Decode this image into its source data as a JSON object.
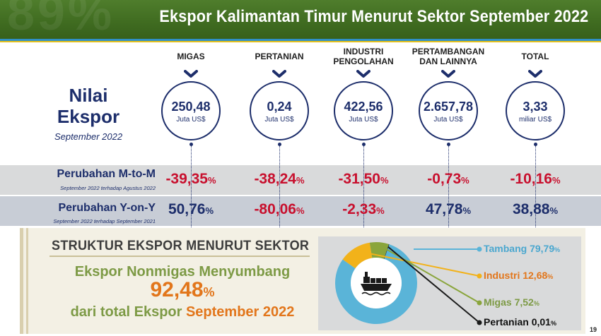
{
  "header": {
    "title": "Ekspor Kalimantan Timur Menurut Sektor September 2022",
    "watermark": "89%"
  },
  "nilai": {
    "line1": "Nilai",
    "line2": "Ekspor",
    "period": "September 2022"
  },
  "rows": {
    "mtm": {
      "label": "Perubahan M-to-M",
      "sub": "September 2022 terhadap Agustus 2022"
    },
    "yoy": {
      "label": "Perubahan Y-on-Y",
      "sub": "September 2022 terhadap September 2021"
    }
  },
  "sectors": [
    {
      "head1": "MIGAS",
      "head2": "",
      "value": "250,48",
      "unit": "Juta US$",
      "mtm": "-39,35",
      "yoy": "50,76",
      "yoy_negative": false
    },
    {
      "head1": "PERTANIAN",
      "head2": "",
      "value": "0,24",
      "unit": "Juta US$",
      "mtm": "-38,24",
      "yoy": "-80,06",
      "yoy_negative": true
    },
    {
      "head1": "INDUSTRI",
      "head2": "PENGOLAHAN",
      "value": "422,56",
      "unit": "Juta US$",
      "mtm": "-31,50",
      "yoy": "-2,33",
      "yoy_negative": true
    },
    {
      "head1": "PERTAMBANGAN",
      "head2": "DAN LAINNYA",
      "value": "2.657,78",
      "unit": "Juta US$",
      "mtm": "-0,73",
      "yoy": "47,78",
      "yoy_negative": false
    },
    {
      "head1": "TOTAL",
      "head2": "",
      "value": "3,33",
      "unit": "miliar US$",
      "mtm": "-10,16",
      "yoy": "38,88",
      "yoy_negative": false
    }
  ],
  "percent_sign": "%",
  "structure": {
    "title": "STRUKTUR EKSPOR MENURUT SEKTOR",
    "line1": "Ekspor Nonmigas Menyumbang",
    "big_value": "92,48",
    "line3_prefix": "dari total Ekspor",
    "line3_highlight": "September 2022"
  },
  "chart_data": {
    "type": "pie",
    "categories": [
      "Tambang",
      "Industri",
      "Migas",
      "Pertanian"
    ],
    "values": [
      79.79,
      12.68,
      7.52,
      0.01
    ],
    "labels": [
      "79,79",
      "12,68",
      "7,52",
      "0,01"
    ],
    "colors": [
      "#5ab4d8",
      "#f2b21a",
      "#8aa53c",
      "#1a1a1a"
    ],
    "center_icon": "cargo-ship-icon"
  },
  "page_number": "19"
}
